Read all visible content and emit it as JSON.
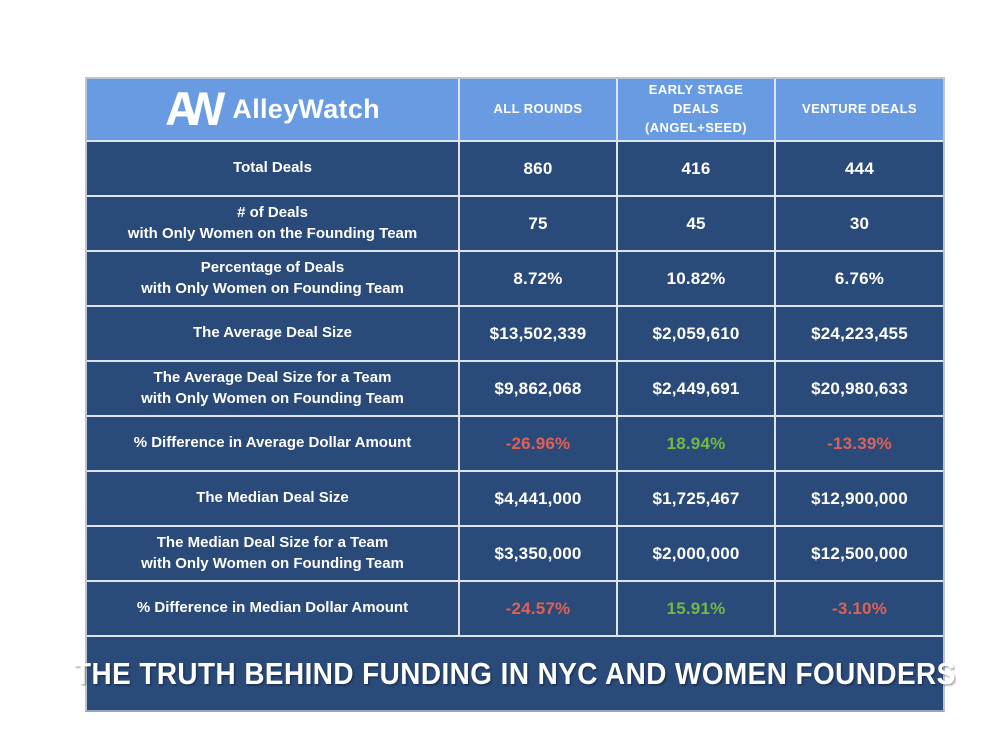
{
  "brand": {
    "monogram_a": "A",
    "monogram_w": "W",
    "name": "AlleyWatch"
  },
  "chart_data": {
    "type": "table",
    "title": "THE TRUTH BEHIND FUNDING IN NYC AND WOMEN FOUNDERS",
    "columns": [
      "ALL ROUNDS",
      "EARLY STAGE\nDEALS\n(ANGEL+SEED)",
      "VENTURE DEALS"
    ],
    "rows": [
      {
        "label": "Total Deals",
        "values": [
          "860",
          "416",
          "444"
        ]
      },
      {
        "label": "# of Deals\nwith Only Women on the Founding Team",
        "values": [
          "75",
          "45",
          "30"
        ]
      },
      {
        "label": "Percentage of Deals\nwith Only Women on Founding Team",
        "values": [
          "8.72%",
          "10.82%",
          "6.76%"
        ]
      },
      {
        "label": "The Average Deal Size",
        "values": [
          "$13,502,339",
          "$2,059,610",
          "$24,223,455"
        ]
      },
      {
        "label": "The Average Deal Size for a Team\nwith Only Women on Founding Team",
        "values": [
          "$9,862,068",
          "$2,449,691",
          "$20,980,633"
        ]
      },
      {
        "label": "% Difference in Average Dollar Amount",
        "values": [
          "-26.96%",
          "18.94%",
          "-13.39%"
        ],
        "value_colors": [
          "negative",
          "positive",
          "negative"
        ]
      },
      {
        "label": "The Median Deal Size",
        "values": [
          "$4,441,000",
          "$1,725,467",
          "$12,900,000"
        ]
      },
      {
        "label": "The Median Deal Size for a Team\nwith Only Women on Founding Team",
        "values": [
          "$3,350,000",
          "$2,000,000",
          "$12,500,000"
        ]
      },
      {
        "label": "% Difference in Median Dollar Amount",
        "values": [
          "-24.57%",
          "15.91%",
          "-3.10%"
        ],
        "value_colors": [
          "negative",
          "positive",
          "negative"
        ]
      }
    ]
  },
  "colors": {
    "header_blue": "#699be3",
    "cell_navy": "#2a4a7a",
    "grid_line": "#dde4ee",
    "negative_red": "#de6156",
    "positive_green": "#71ba40",
    "text_white": "#ffffff"
  }
}
